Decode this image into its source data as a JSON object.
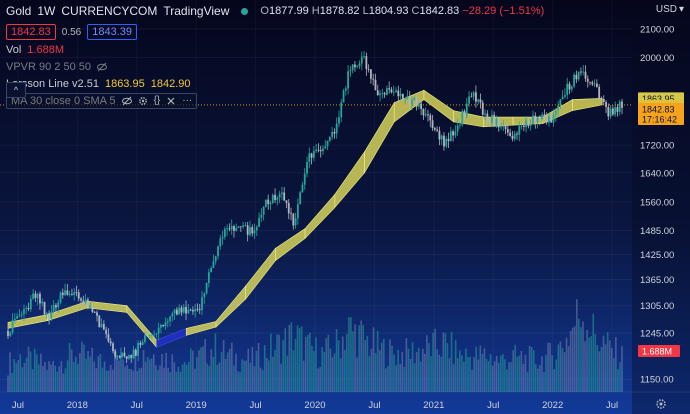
{
  "header": {
    "symbol": "Gold",
    "interval": "1W",
    "exchange": "CURRENCYCOM",
    "source": "TradingView",
    "open_label": "O",
    "open": "1877.99",
    "high_label": "H",
    "high": "1878.82",
    "low_label": "L",
    "low": "1804.93",
    "close_label": "C",
    "close": "1842.83",
    "change": "−28.29 (−1.51%)",
    "sell_price": "1842.83",
    "spread": "0.56",
    "buy_price": "1843.39",
    "currency": "USD"
  },
  "indicators": {
    "vol_label": "Vol",
    "vol_value": "1.688M",
    "vpvr_label": "VPVR 90 2 50 50",
    "larsson_label": "Larsson Line v2.51",
    "larsson_v1": "1863.95",
    "larsson_v2": "1842.90",
    "ma_label": "MA 30 close 0 SMA 5",
    "collapse_icon": "^"
  },
  "colors": {
    "up": "#26a69a",
    "down": "#b2b5be",
    "band": "#d6d45a",
    "band_bearish": "#2030c8",
    "price_tag": "#f7a21b",
    "volume_tag": "#f23645"
  },
  "chart_data": {
    "type": "candlestick",
    "title": "Gold · 1W · CURRENCYCOM",
    "x_tick_labels": [
      "Jul",
      "2018",
      "Jul",
      "2019",
      "Jul",
      "2020",
      "Jul",
      "2021",
      "Jul",
      "2022",
      "Jul"
    ],
    "x_tick_dates": [
      "2017-07",
      "2018-01",
      "2018-07",
      "2019-01",
      "2019-07",
      "2020-01",
      "2020-07",
      "2021-01",
      "2021-07",
      "2022-01",
      "2022-07"
    ],
    "y_tick_labels": [
      "2100.00",
      "2000.00",
      "1720.00",
      "1640.00",
      "1560.00",
      "1485.00",
      "1425.00",
      "1365.00",
      "1305.00",
      "1245.00",
      "1150.00"
    ],
    "y_tick_values": [
      2100,
      2000,
      1720,
      1640,
      1560,
      1485,
      1425,
      1365,
      1305,
      1245,
      1150
    ],
    "ylim": [
      1125,
      2140
    ],
    "y_scale": "log",
    "price_tags": [
      {
        "label": "1863.95",
        "value": 1863.95
      },
      {
        "label": "1842.90",
        "value": 1842.9
      },
      {
        "label": "1842.83",
        "value": 1842.83,
        "sublabel": "17:16:42"
      }
    ],
    "volume_tag": {
      "label": "1.688M"
    },
    "price_path_dates": [
      "2017-06",
      "2017-08",
      "2017-09",
      "2017-11",
      "2018-01",
      "2018-03",
      "2018-05",
      "2018-06",
      "2018-08",
      "2018-09",
      "2018-10",
      "2018-12",
      "2019-01",
      "2019-03",
      "2019-05",
      "2019-06",
      "2019-08",
      "2019-10",
      "2019-12",
      "2020-01",
      "2020-02",
      "2020-03",
      "2020-04",
      "2020-05",
      "2020-06",
      "2020-07",
      "2020-08",
      "2020-09",
      "2020-10",
      "2020-12",
      "2021-01",
      "2021-02",
      "2021-03",
      "2021-04",
      "2021-06",
      "2021-07",
      "2021-08",
      "2021-09",
      "2021-11",
      "2021-12",
      "2022-01",
      "2022-02",
      "2022-03",
      "2022-04",
      "2022-05",
      "2022-06"
    ],
    "price_path_closes": [
      1250,
      1285,
      1330,
      1280,
      1335,
      1330,
      1300,
      1255,
      1195,
      1195,
      1230,
      1255,
      1290,
      1300,
      1285,
      1410,
      1500,
      1490,
      1480,
      1560,
      1580,
      1500,
      1680,
      1700,
      1760,
      1960,
      2000,
      1880,
      1900,
      1860,
      1850,
      1780,
      1720,
      1780,
      1880,
      1810,
      1780,
      1750,
      1790,
      1800,
      1800,
      1900,
      1960,
      1900,
      1820,
      1842.83
    ],
    "larsson_band_dates": [
      "2017-06",
      "2017-10",
      "2018-02",
      "2018-06",
      "2018-09",
      "2018-12",
      "2019-03",
      "2019-06",
      "2019-09",
      "2019-12",
      "2020-03",
      "2020-06",
      "2020-09",
      "2020-12",
      "2021-03",
      "2021-06",
      "2021-09",
      "2021-12",
      "2022-03",
      "2022-06"
    ],
    "larsson_band_upper": [
      1268,
      1285,
      1315,
      1305,
      1230,
      1255,
      1270,
      1350,
      1440,
      1490,
      1580,
      1700,
      1850,
      1890,
      1825,
      1805,
      1805,
      1805,
      1860,
      1864
    ],
    "larsson_band_lower": [
      1255,
      1272,
      1300,
      1290,
      1215,
      1240,
      1258,
      1320,
      1410,
      1465,
      1545,
      1640,
      1790,
      1860,
      1790,
      1775,
      1780,
      1785,
      1825,
      1843
    ],
    "volume_values_relative": [
      0.45,
      0.55,
      0.48,
      0.4,
      0.5,
      0.6,
      0.52,
      0.47,
      0.55,
      0.5,
      0.62,
      0.58,
      0.5,
      0.48,
      0.55,
      0.7,
      0.6,
      0.52,
      0.5,
      0.65,
      0.75,
      0.9,
      0.7,
      0.6,
      0.72,
      1.0,
      0.85,
      0.7,
      0.62,
      0.6,
      0.65,
      0.7,
      0.75,
      0.6,
      0.55,
      0.58,
      0.5,
      0.55,
      0.52,
      0.5,
      0.6,
      0.85,
      1.3,
      0.9,
      0.7,
      0.55
    ],
    "last_close": 1842.83
  }
}
